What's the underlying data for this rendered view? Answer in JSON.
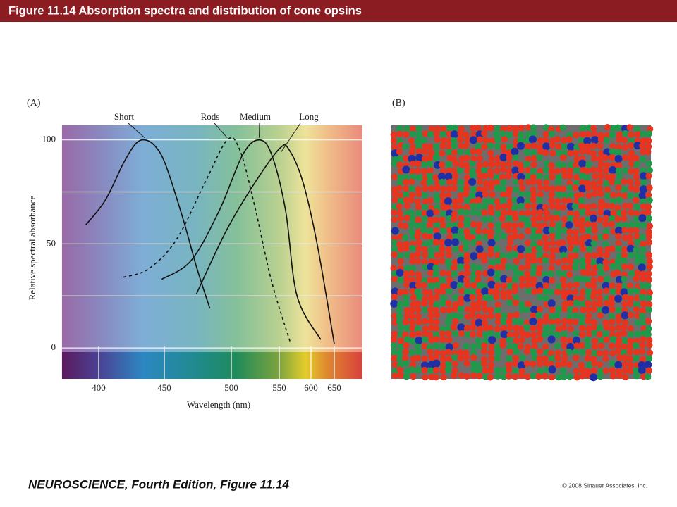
{
  "header": {
    "title": "Figure 11.14  Absorption spectra and distribution of cone opsins"
  },
  "footer": {
    "book": "NEUROSCIENCE, Fourth Edition, Figure 11.14",
    "copyright": "© 2008 Sinauer Associates, Inc."
  },
  "panel_b": {
    "label": "(B)"
  },
  "chart_data": {
    "type": "line",
    "panel_label": "(A)",
    "x_label": "Wavelength (nm)",
    "y_label": "Relative spectral absorbance",
    "xlim": [
      372,
      710
    ],
    "xticks": [
      400,
      450,
      500,
      550,
      600,
      650
    ],
    "ylim": [
      -2,
      107
    ],
    "yticks": [
      0,
      50,
      100
    ],
    "ygrid": [
      0,
      25,
      50,
      75,
      100
    ],
    "grid": true,
    "series": [
      {
        "name": "Short",
        "color": "#111111",
        "dashed": false,
        "x": [
          390,
          405,
          419,
          428,
          435,
          443,
          451,
          464,
          474,
          484
        ],
        "values": [
          59,
          71,
          89,
          98,
          100,
          97,
          88,
          62,
          39,
          19
        ]
      },
      {
        "name": "Rods",
        "color": "#111111",
        "dashed": true,
        "x": [
          419,
          438,
          459,
          480,
          497,
          509,
          524,
          542,
          567
        ],
        "values": [
          34,
          38,
          52,
          79,
          100,
          95,
          69,
          32,
          3
        ]
      },
      {
        "name": "Medium",
        "color": "#111111",
        "dashed": false,
        "x": [
          448,
          470,
          491,
          512,
          529,
          542,
          560,
          578,
          621
        ],
        "values": [
          33,
          42,
          66,
          93,
          100,
          93,
          66,
          25,
          4
        ]
      },
      {
        "name": "Long",
        "color": "#111111",
        "dashed": false,
        "x": [
          474,
          496,
          524,
          551,
          566,
          588,
          614,
          650
        ],
        "values": [
          26,
          56,
          79,
          96,
          95,
          79,
          49,
          2
        ]
      }
    ]
  }
}
